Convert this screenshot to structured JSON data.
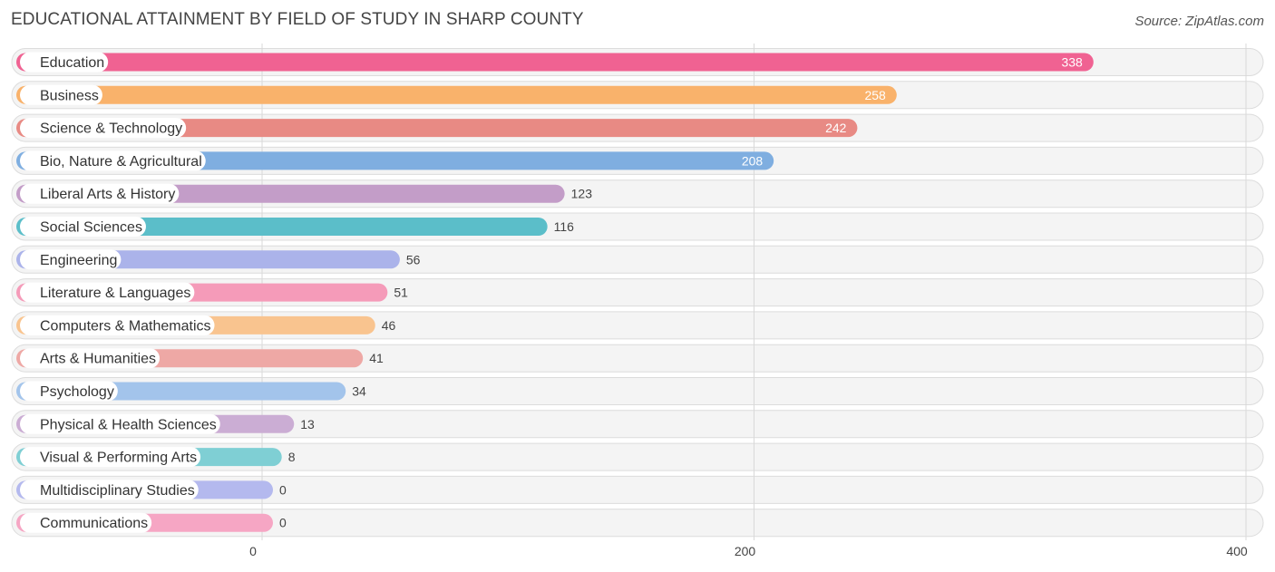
{
  "chart_data": {
    "type": "bar",
    "orientation": "horizontal",
    "title": "EDUCATIONAL ATTAINMENT BY FIELD OF STUDY IN SHARP COUNTY",
    "source": "Source: ZipAtlas.com",
    "xlim": [
      0,
      400
    ],
    "xticks": [
      0,
      200,
      400
    ],
    "grid": true,
    "categories": [
      "Education",
      "Business",
      "Science & Technology",
      "Bio, Nature & Agricultural",
      "Liberal Arts & History",
      "Social Sciences",
      "Engineering",
      "Literature & Languages",
      "Computers & Mathematics",
      "Arts & Humanities",
      "Psychology",
      "Physical & Health Sciences",
      "Visual & Performing Arts",
      "Multidisciplinary Studies",
      "Communications"
    ],
    "values": [
      338,
      258,
      242,
      208,
      123,
      116,
      56,
      51,
      46,
      41,
      34,
      13,
      8,
      0,
      0
    ],
    "colors": [
      "#f06292",
      "#f9b26b",
      "#e88a84",
      "#7faee0",
      "#c39dc8",
      "#5bbec9",
      "#abb3ea",
      "#f59bb9",
      "#f9c48f",
      "#eea8a5",
      "#a3c4eb",
      "#cbadd4",
      "#7fcfd4",
      "#b4b9ee",
      "#f6a6c4"
    ]
  }
}
